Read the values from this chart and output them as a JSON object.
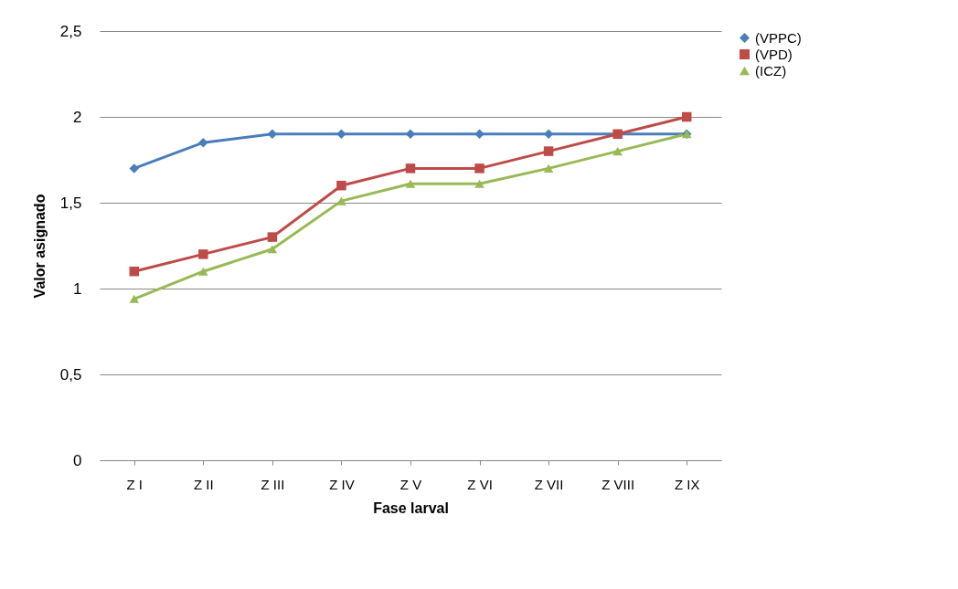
{
  "chart_data": {
    "type": "line",
    "xlabel": "Fase larval",
    "ylabel": "Valor asignado",
    "categories": [
      "Z I",
      "Z II",
      "Z III",
      "Z IV",
      "Z V",
      "Z VI",
      "Z VII",
      "Z VIII",
      "Z IX"
    ],
    "series": [
      {
        "name": "(VPPC)",
        "color": "#4a7ebb",
        "marker": "diamond",
        "values": [
          1.7,
          1.85,
          1.9,
          1.9,
          1.9,
          1.9,
          1.9,
          1.9,
          1.9
        ]
      },
      {
        "name": "(VPD)",
        "color": "#be4b48",
        "marker": "square",
        "values": [
          1.1,
          1.2,
          1.3,
          1.6,
          1.7,
          1.7,
          1.8,
          1.9,
          2.0
        ]
      },
      {
        "name": "(ICZ)",
        "color": "#98b954",
        "marker": "triangle",
        "values": [
          0.94,
          1.1,
          1.23,
          1.51,
          1.61,
          1.61,
          1.7,
          1.8,
          1.9
        ]
      }
    ],
    "ylim": [
      0,
      2.5
    ],
    "yticks": [
      0,
      {
        "value": 0.5,
        "label": "0,5"
      },
      1,
      {
        "value": 1.5,
        "label": "1,5"
      },
      2,
      {
        "value": 2.5,
        "label": "2,5"
      }
    ],
    "grid": "y",
    "legend": "right"
  }
}
